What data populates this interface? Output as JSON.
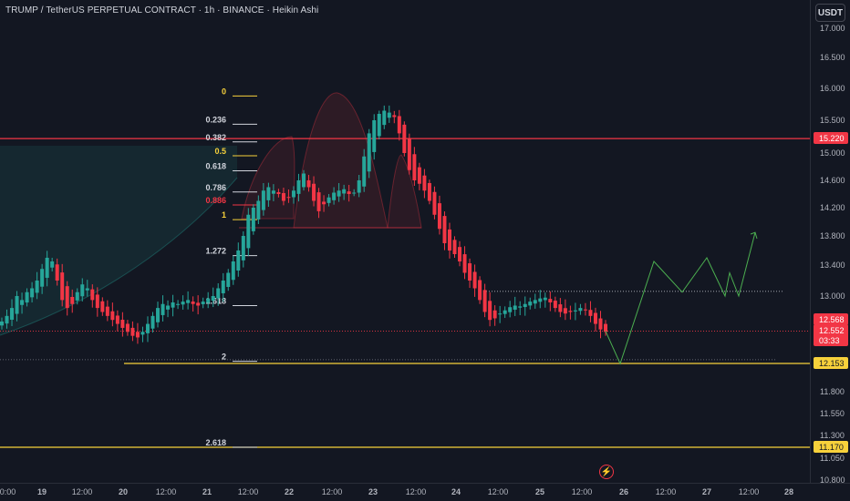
{
  "header": {
    "title": "TRUMP / TetherUS PERPETUAL CONTRACT · 1h · BINANCE · Heikin Ashi",
    "currency_button": "USDT"
  },
  "colors": {
    "background": "#131722",
    "up": "#26a69a",
    "down": "#f23645",
    "fib_yellow": "#f7d13b",
    "resistance": "#f23645",
    "projection": "#4caf50"
  },
  "icons": {
    "replay": "lightning-icon"
  },
  "chart_data": {
    "type": "candlestick",
    "chart_style": "Heikin Ashi",
    "symbol": "TRUMP / TetherUS PERPETUAL CONTRACT",
    "interval": "1h",
    "exchange": "BINANCE",
    "ylim": [
      10.8,
      17.25
    ],
    "y_ticks": [
      "17.000",
      "16.500",
      "16.000",
      "15.500",
      "15.000",
      "14.600",
      "14.200",
      "13.800",
      "13.400",
      "13.000",
      "11.800",
      "11.550",
      "11.300",
      "11.050",
      "10.800"
    ],
    "x_ticks": [
      "20:00",
      "19",
      "12:00",
      "20",
      "12:00",
      "21",
      "12:00",
      "22",
      "12:00",
      "23",
      "12:00",
      "24",
      "12:00",
      "25",
      "12:00",
      "26",
      "12:00",
      "27",
      "12:00",
      "28"
    ],
    "price_labels": [
      {
        "text": "15.220",
        "value": 15.22,
        "color": "#f23645"
      },
      {
        "text": "12.568",
        "value": 12.568,
        "color": "#f23645"
      },
      {
        "text": "12.552",
        "value": 12.552,
        "color": "#f23645"
      },
      {
        "text": "03:33",
        "value": 12.5,
        "color": "#f23645"
      },
      {
        "text": "12.153",
        "value": 12.153,
        "color": "#f7d13b"
      },
      {
        "text": "11.170",
        "value": 11.17,
        "color": "#f7d13b"
      }
    ],
    "fib_levels": [
      {
        "label": "0",
        "value": 15.88,
        "color": "#f7d13b"
      },
      {
        "label": "0.236",
        "value": 15.44,
        "color": "#d1d4dc"
      },
      {
        "label": "0.382",
        "value": 15.17,
        "color": "#d1d4dc"
      },
      {
        "label": "0.5",
        "value": 14.96,
        "color": "#f7d13b"
      },
      {
        "label": "0.618",
        "value": 14.74,
        "color": "#d1d4dc"
      },
      {
        "label": "0.786",
        "value": 14.43,
        "color": "#d1d4dc"
      },
      {
        "label": "0.886",
        "value": 14.24,
        "color": "#f23645"
      },
      {
        "label": "1",
        "value": 14.03,
        "color": "#f7d13b"
      },
      {
        "label": "1.272",
        "value": 13.53,
        "color": "#d1d4dc"
      },
      {
        "label": "1.618",
        "value": 12.88,
        "color": "#d1d4dc"
      },
      {
        "label": "2",
        "value": 12.18,
        "color": "#d1d4dc"
      },
      {
        "label": "2.618",
        "value": 11.17,
        "color": "#d1d4dc"
      }
    ],
    "horizontal_lines": [
      {
        "value": 15.22,
        "style": "solid",
        "color": "#f23645"
      },
      {
        "value": 12.153,
        "style": "solid",
        "color": "#f7d13b"
      },
      {
        "value": 11.17,
        "style": "solid",
        "color": "#f7d13b"
      },
      {
        "value": 12.56,
        "style": "dotted",
        "color": "#f23645"
      },
      {
        "value": 12.2,
        "style": "dotted",
        "color": "#787b86"
      },
      {
        "value": 13.06,
        "style": "dotted",
        "color": "#d1d4dc"
      }
    ],
    "pattern": "head-and-shoulders",
    "close_path": [
      12.68,
      12.75,
      12.85,
      13.0,
      12.95,
      13.05,
      13.1,
      13.2,
      13.35,
      13.5,
      13.45,
      13.2,
      12.95,
      12.85,
      12.9,
      13.05,
      13.15,
      13.1,
      12.95,
      12.85,
      12.8,
      12.75,
      12.7,
      12.65,
      12.6,
      12.55,
      12.5,
      12.48,
      12.55,
      12.65,
      12.75,
      12.85,
      12.9,
      12.88,
      12.92,
      12.9,
      12.93,
      12.95,
      12.9,
      12.88,
      12.93,
      12.97,
      13.0,
      13.1,
      13.2,
      13.3,
      13.45,
      13.6,
      13.8,
      14.1,
      14.2,
      14.3,
      14.45,
      14.5,
      14.45,
      14.4,
      14.3,
      14.35,
      14.45,
      14.6,
      14.7,
      14.5,
      14.3,
      14.15,
      14.25,
      14.35,
      14.42,
      14.45,
      14.47,
      14.4,
      14.42,
      14.6,
      14.95,
      15.3,
      15.5,
      15.6,
      15.65,
      15.62,
      15.55,
      15.3,
      15.0,
      14.75,
      14.6,
      14.55,
      14.45,
      14.3,
      14.1,
      13.9,
      13.7,
      13.6,
      13.55,
      13.45,
      13.3,
      13.2,
      13.1,
      12.95,
      12.8,
      12.7,
      12.72,
      12.78,
      12.82,
      12.86,
      12.88,
      12.87,
      12.9,
      12.93,
      12.95,
      12.97,
      12.98,
      12.92,
      12.85,
      12.8,
      12.78,
      12.8,
      12.82,
      12.85,
      12.82,
      12.75,
      12.65,
      12.58,
      12.55
    ],
    "projection_path": [
      [
        12.56
      ],
      [
        12.15
      ],
      [
        13.45
      ],
      [
        13.05
      ],
      [
        13.5
      ],
      [
        13.0
      ],
      [
        13.3
      ],
      [
        13.0
      ],
      [
        13.85
      ]
    ]
  }
}
